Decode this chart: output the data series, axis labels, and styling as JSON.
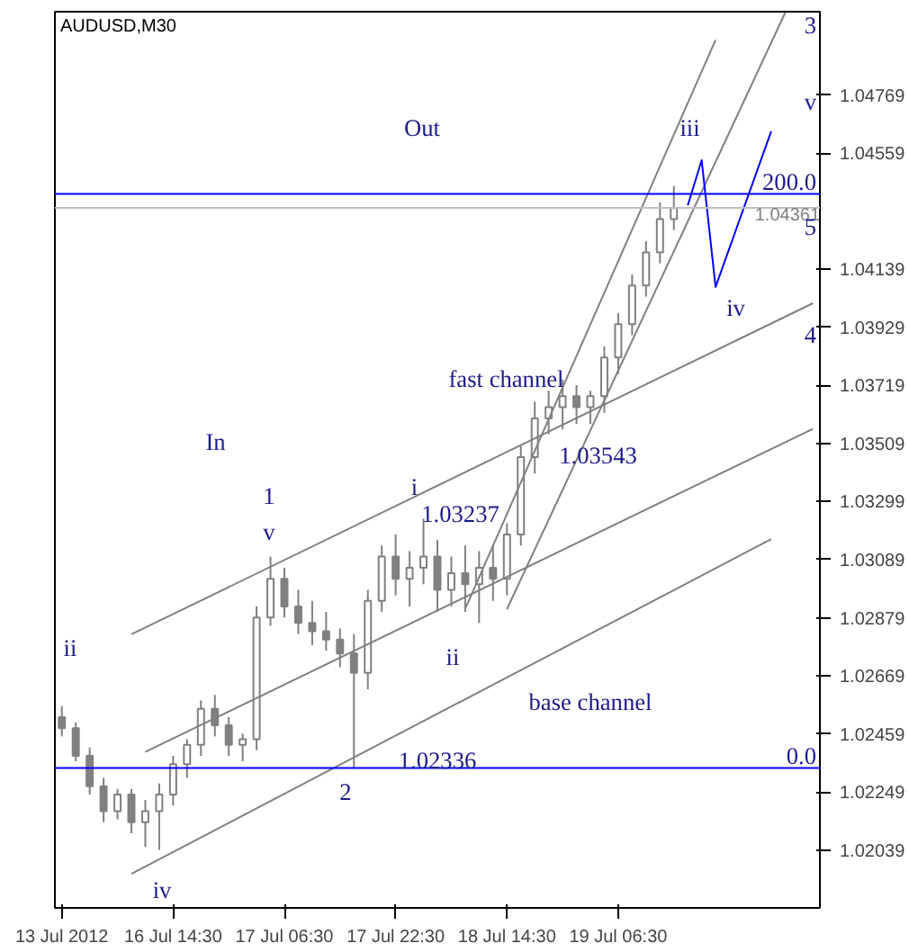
{
  "chart_data": {
    "type": "candlestick",
    "title": "AUDUSD,M30",
    "categories": [
      "13 Jul 2012",
      null,
      null,
      null,
      null,
      null,
      null,
      null,
      "16 Jul 14:30",
      null,
      null,
      null,
      null,
      null,
      null,
      null,
      "17 Jul 06:30",
      null,
      null,
      null,
      null,
      null,
      null,
      null,
      "17 Jul 22:30",
      null,
      null,
      null,
      null,
      null,
      null,
      null,
      "18 Jul 14:30",
      null,
      null,
      null,
      null,
      null,
      null,
      null,
      "19 Jul 06:30",
      null,
      null,
      null,
      null,
      null,
      null,
      null,
      null,
      null,
      null,
      null,
      null,
      null,
      null
    ],
    "ohlc": [
      [
        1.0252,
        1.0256,
        1.0245,
        1.0248
      ],
      [
        1.0248,
        1.025,
        1.0236,
        1.0238
      ],
      [
        1.0238,
        1.0241,
        1.0224,
        1.0227
      ],
      [
        1.0227,
        1.023,
        1.0214,
        1.0218
      ],
      [
        1.0218,
        1.0226,
        1.0215,
        1.0224
      ],
      [
        1.0224,
        1.0226,
        1.021,
        1.0214
      ],
      [
        1.0214,
        1.0222,
        1.0205,
        1.0218
      ],
      [
        1.0218,
        1.0228,
        1.0204,
        1.0224
      ],
      [
        1.0224,
        1.0238,
        1.022,
        1.0235
      ],
      [
        1.0235,
        1.0244,
        1.023,
        1.0242
      ],
      [
        1.0242,
        1.0258,
        1.0238,
        1.0255
      ],
      [
        1.0255,
        1.026,
        1.0245,
        1.0249
      ],
      [
        1.0249,
        1.0252,
        1.0238,
        1.0242
      ],
      [
        1.0242,
        1.0246,
        1.0236,
        1.0244
      ],
      [
        1.0244,
        1.0292,
        1.024,
        1.0288
      ],
      [
        1.0288,
        1.031,
        1.0285,
        1.0302
      ],
      [
        1.0302,
        1.0306,
        1.0288,
        1.0292
      ],
      [
        1.0292,
        1.0298,
        1.0282,
        1.0286
      ],
      [
        1.0286,
        1.0294,
        1.0278,
        1.0283
      ],
      [
        1.0283,
        1.029,
        1.0276,
        1.028
      ],
      [
        1.028,
        1.0284,
        1.027,
        1.0275
      ],
      [
        1.0275,
        1.0282,
        1.02336,
        1.0268
      ],
      [
        1.0268,
        1.0298,
        1.0262,
        1.0294
      ],
      [
        1.0294,
        1.0314,
        1.029,
        1.031
      ],
      [
        1.031,
        1.0318,
        1.0296,
        1.0302
      ],
      [
        1.0302,
        1.0312,
        1.0292,
        1.0306
      ],
      [
        1.0306,
        1.03237,
        1.03,
        1.031
      ],
      [
        1.031,
        1.0316,
        1.029,
        1.0298
      ],
      [
        1.0298,
        1.031,
        1.0292,
        1.0304
      ],
      [
        1.0304,
        1.0314,
        1.029,
        1.03
      ],
      [
        1.03,
        1.0312,
        1.0286,
        1.0306
      ],
      [
        1.0306,
        1.0314,
        1.0294,
        1.0302
      ],
      [
        1.0302,
        1.0322,
        1.0296,
        1.0318
      ],
      [
        1.0318,
        1.035,
        1.0314,
        1.0346
      ],
      [
        1.0346,
        1.0366,
        1.034,
        1.036
      ],
      [
        1.036,
        1.037,
        1.03543,
        1.0364
      ],
      [
        1.0364,
        1.0374,
        1.0356,
        1.0368
      ],
      [
        1.0368,
        1.0372,
        1.0358,
        1.0364
      ],
      [
        1.0364,
        1.037,
        1.0358,
        1.0368
      ],
      [
        1.0368,
        1.0386,
        1.0362,
        1.0382
      ],
      [
        1.0382,
        1.0398,
        1.0376,
        1.0394
      ],
      [
        1.0394,
        1.0412,
        1.039,
        1.0408
      ],
      [
        1.0408,
        1.0424,
        1.0404,
        1.042
      ],
      [
        1.042,
        1.0438,
        1.0416,
        1.0432
      ],
      [
        1.0432,
        1.0444,
        1.0428,
        1.0436
      ],
      null,
      null,
      null,
      null,
      null,
      null,
      null,
      null,
      null,
      null
    ],
    "color": "#808080",
    "series": [
      {
        "type": "line",
        "color": "#808080",
        "values": [
          null,
          null,
          null,
          null,
          null,
          1.01953,
          null,
          null,
          null,
          null,
          null,
          null,
          null,
          null,
          null,
          null,
          null,
          null,
          null,
          null,
          null,
          null,
          null,
          null,
          null,
          null,
          null,
          null,
          null,
          null,
          null,
          null,
          null,
          null,
          null,
          null,
          null,
          null,
          null,
          null,
          null,
          null,
          null,
          null,
          null,
          null,
          null,
          null,
          null,
          null,
          null,
          1.03163,
          null,
          null,
          null
        ]
      },
      {
        "type": "line",
        "color": "#808080",
        "values": [
          null,
          null,
          null,
          null,
          null,
          null,
          1.02394,
          null,
          null,
          null,
          null,
          null,
          null,
          null,
          null,
          null,
          null,
          null,
          null,
          null,
          null,
          null,
          null,
          null,
          null,
          null,
          null,
          null,
          null,
          null,
          null,
          null,
          null,
          null,
          null,
          null,
          null,
          null,
          null,
          null,
          null,
          null,
          null,
          null,
          null,
          null,
          null,
          null,
          null,
          null,
          null,
          null,
          null,
          null,
          1.03562
        ]
      },
      {
        "type": "line",
        "color": "#808080",
        "values": [
          null,
          null,
          null,
          null,
          null,
          1.02819,
          null,
          null,
          null,
          null,
          null,
          null,
          null,
          null,
          null,
          null,
          null,
          null,
          null,
          null,
          null,
          null,
          null,
          null,
          null,
          null,
          null,
          null,
          null,
          null,
          null,
          null,
          null,
          null,
          null,
          null,
          null,
          null,
          null,
          null,
          null,
          null,
          null,
          null,
          null,
          null,
          null,
          null,
          null,
          null,
          null,
          null,
          null,
          null,
          1.04016
        ]
      },
      {
        "type": "line",
        "color": "#808080",
        "values": [
          null,
          null,
          null,
          null,
          null,
          null,
          null,
          null,
          null,
          null,
          null,
          null,
          null,
          null,
          null,
          null,
          null,
          null,
          null,
          null,
          null,
          null,
          null,
          null,
          null,
          null,
          null,
          null,
          null,
          1.02911,
          null,
          null,
          null,
          null,
          null,
          null,
          null,
          null,
          null,
          null,
          null,
          null,
          null,
          null,
          null,
          null,
          null,
          1.04968,
          null,
          null,
          null,
          null,
          null,
          null,
          null
        ]
      },
      {
        "type": "line",
        "color": "#808080",
        "values": [
          null,
          null,
          null,
          null,
          null,
          null,
          null,
          null,
          null,
          null,
          null,
          null,
          null,
          null,
          null,
          null,
          null,
          null,
          null,
          null,
          null,
          null,
          null,
          null,
          null,
          null,
          null,
          null,
          null,
          null,
          null,
          null,
          1.0291,
          null,
          null,
          null,
          null,
          null,
          null,
          null,
          null,
          null,
          null,
          null,
          null,
          null,
          null,
          null,
          null,
          null,
          null,
          null,
          1.05066,
          null,
          null
        ]
      },
      {
        "type": "line",
        "color": "#0000ff",
        "values": [
          null,
          null,
          null,
          null,
          null,
          null,
          null,
          null,
          null,
          null,
          null,
          null,
          null,
          null,
          null,
          null,
          null,
          null,
          null,
          null,
          null,
          null,
          null,
          null,
          null,
          null,
          null,
          null,
          null,
          null,
          null,
          null,
          null,
          null,
          null,
          null,
          null,
          null,
          null,
          null,
          null,
          null,
          null,
          null,
          null,
          1.0437,
          1.04533,
          1.04075,
          null,
          null,
          null,
          1.04638,
          null,
          null,
          null
        ]
      }
    ],
    "ylim": [
      1.0183,
      1.0507
    ],
    "yticks": [
      1.02039,
      1.02249,
      1.02459,
      1.02669,
      1.02879,
      1.03089,
      1.03299,
      1.03509,
      1.03719,
      1.03929,
      1.04139,
      1.04559,
      1.04769
    ],
    "grid": false,
    "ref_lines": [
      {
        "axis": "y",
        "value": 1.04361,
        "label": "1.04361",
        "color": "#c0c0c0"
      },
      {
        "axis": "y",
        "value": 1.04411,
        "color": "#0000ff"
      },
      {
        "axis": "y",
        "value": 1.02336,
        "color": "#0000ff"
      }
    ],
    "annotations": [
      "Out",
      "In",
      "fast channel",
      "base channel",
      "1",
      "2",
      "3",
      "4",
      "5",
      "ii",
      "v",
      "iv",
      "i",
      "ii",
      "iii",
      "iv",
      "v",
      "1.03237",
      "1.03543",
      "1.02336",
      "200.0",
      "0.0"
    ]
  }
}
